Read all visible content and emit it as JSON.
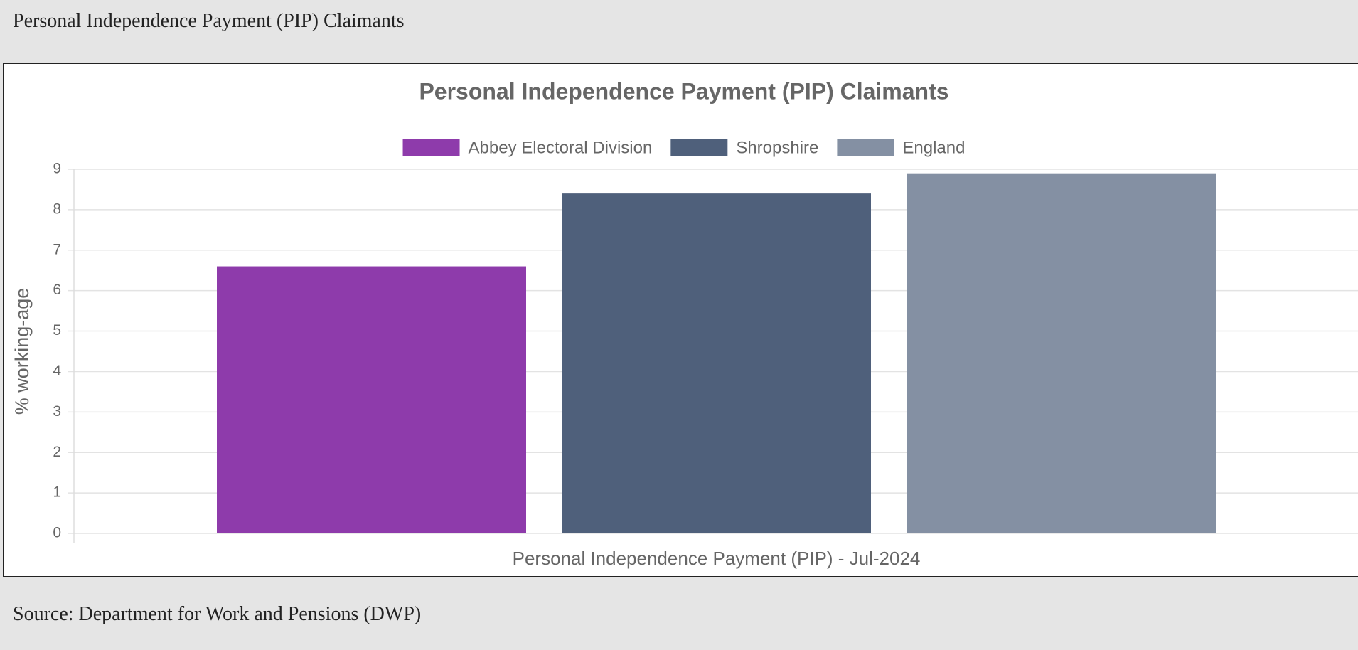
{
  "header": {
    "title": "Personal Independence Payment (PIP) Claimants"
  },
  "chart_data": {
    "type": "bar",
    "title": "Personal Independence Payment (PIP) Claimants",
    "y_label": "% working-age",
    "categories": [
      "Personal Independence Payment (PIP) - Jul-2024"
    ],
    "series": [
      {
        "name": "Abbey Electoral Division",
        "color": "#8e3bab",
        "values": [
          6.6
        ]
      },
      {
        "name": "Shropshire",
        "color": "#4f607b",
        "values": [
          8.4
        ]
      },
      {
        "name": "England",
        "color": "#8490a3",
        "values": [
          8.9
        ]
      }
    ],
    "ylim": [
      0,
      9
    ],
    "yticks": [
      0,
      1,
      2,
      3,
      4,
      5,
      6,
      7,
      8,
      9
    ],
    "grid": true,
    "legend": "top"
  },
  "footer": {
    "source": "Source: Department for Work and Pensions (DWP)"
  }
}
